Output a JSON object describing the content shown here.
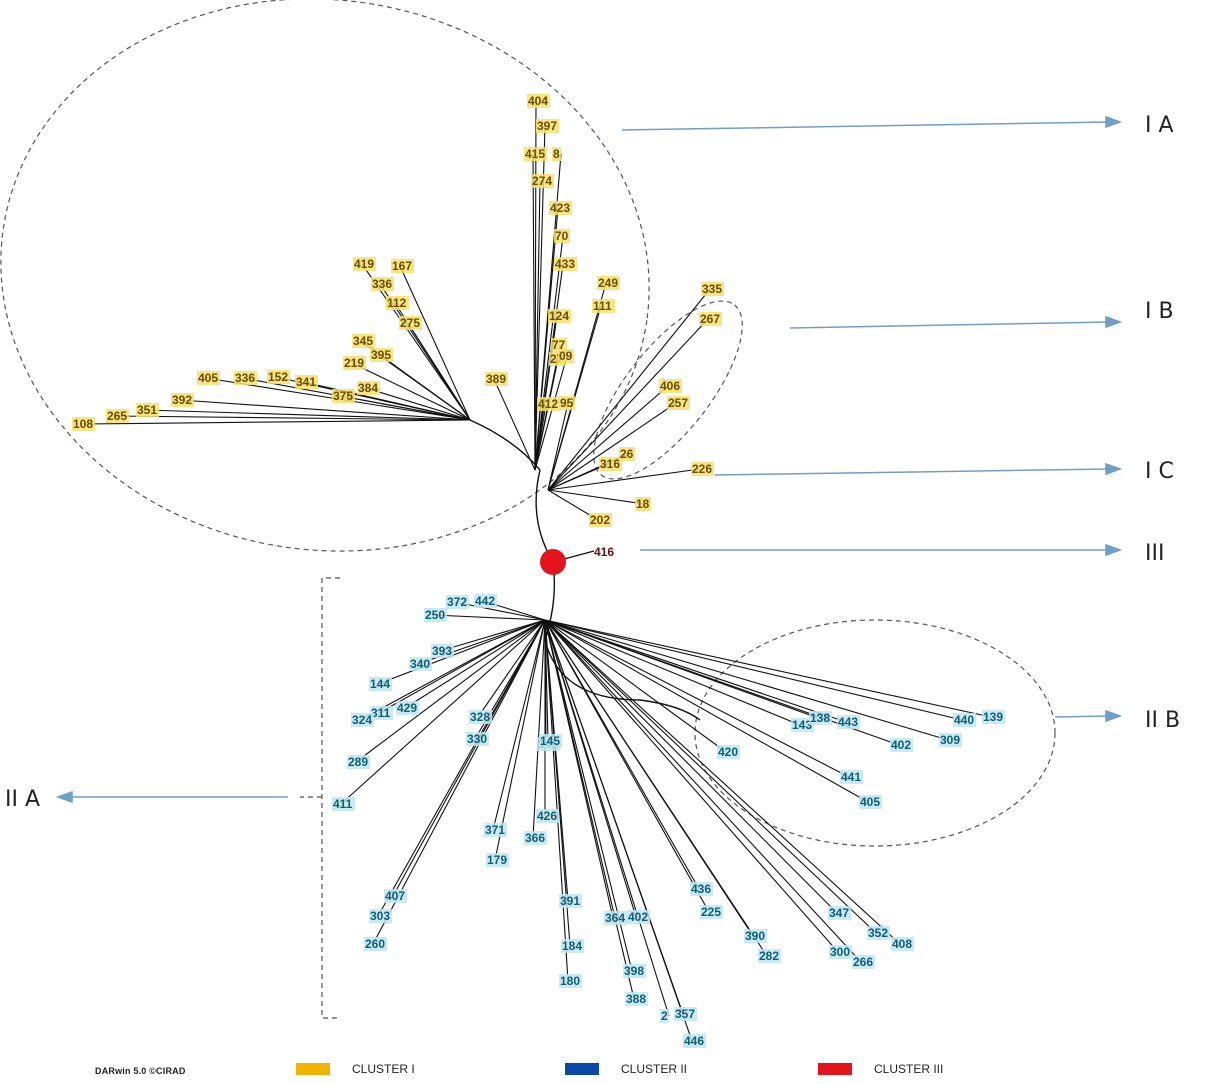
{
  "software_credit": "DARwin 5.0 ©CIRAD",
  "colors": {
    "cluster1": "#f0b400",
    "cluster2": "#0a49a8",
    "cluster3": "#e3141b",
    "label_bg1": "#f4e06a",
    "label_bg2": "#bfe6f0",
    "label_fg1": "#6b4c00",
    "label_fg2": "#0d5f73",
    "label_fg3": "#6b0d0d",
    "branch": "#111111",
    "arrow": "#6f9fc7"
  },
  "group_labels": {
    "IA": "I A",
    "IB": "I B",
    "IC": "I C",
    "III": "III",
    "IIB": "II B",
    "IIA": "II A"
  },
  "legend": [
    {
      "label": "CLUSTER I",
      "color": "#f0b400"
    },
    {
      "label": "CLUSTER II",
      "color": "#0a49a8"
    },
    {
      "label": "CLUSTER III",
      "color": "#e3141b"
    }
  ],
  "leaves": {
    "cluster1": [
      "404",
      "397",
      "415",
      "8",
      "274",
      "423",
      "70",
      "433",
      "249",
      "111",
      "124",
      "77",
      "27",
      "09",
      "95",
      "412",
      "389",
      "405",
      "336",
      "152",
      "341",
      "108",
      "265",
      "351",
      "392",
      "384",
      "375",
      "419",
      "167",
      "336",
      "112",
      "275",
      "345",
      "219",
      "395",
      "335",
      "267",
      "316",
      "406",
      "257",
      "26",
      "226",
      "18",
      "202"
    ],
    "cluster3": [
      "416"
    ],
    "cluster2": [
      "250",
      "372",
      "442",
      "393",
      "340",
      "144",
      "311",
      "429",
      "324",
      "411",
      "289",
      "328",
      "330",
      "179",
      "371",
      "145",
      "426",
      "366",
      "391",
      "184",
      "180",
      "398",
      "388",
      "2",
      "357",
      "446",
      "364",
      "402",
      "436",
      "225",
      "390",
      "282",
      "300",
      "266",
      "352",
      "408",
      "420",
      "440",
      "139",
      "143",
      "443",
      "138",
      "402",
      "309",
      "441",
      "405",
      "303",
      "260",
      "407",
      "347",
      "145"
    ]
  }
}
